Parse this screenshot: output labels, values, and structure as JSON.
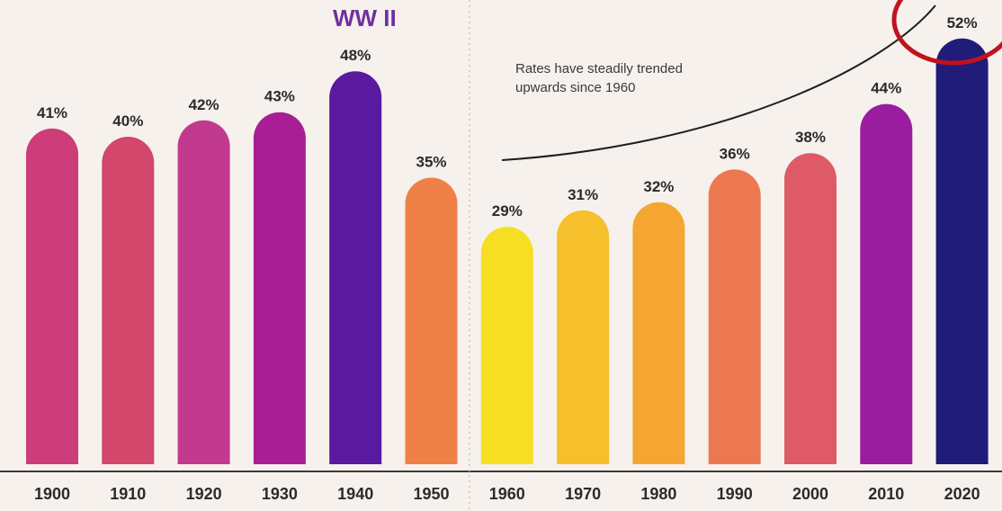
{
  "chart_data": {
    "type": "bar",
    "categories": [
      "1900",
      "1910",
      "1920",
      "1930",
      "1940",
      "1950",
      "1960",
      "1970",
      "1980",
      "1990",
      "2000",
      "2010",
      "2020"
    ],
    "values": [
      41,
      40,
      42,
      43,
      48,
      35,
      29,
      31,
      32,
      36,
      38,
      44,
      52
    ],
    "value_labels": [
      "41%",
      "40%",
      "42%",
      "43%",
      "48%",
      "35%",
      "29%",
      "31%",
      "32%",
      "36%",
      "38%",
      "44%",
      "52%"
    ],
    "bar_colors": [
      "#cc3d79",
      "#d2476b",
      "#c23a8f",
      "#a81f95",
      "#5a1aa0",
      "#ef8048",
      "#f6de22",
      "#f6bf2c",
      "#f5a630",
      "#ec7852",
      "#de5a67",
      "#9a1c9f",
      "#1f1c7a"
    ],
    "ylim": [
      0,
      55
    ],
    "grid": false,
    "legend": "none",
    "title": "",
    "xlabel": "",
    "ylabel": "",
    "annotations": {
      "ww_label": "WW II",
      "ww_color": "#7030a0",
      "trend_line1": "Rates have steadily trended",
      "trend_line2": "upwards since 1960",
      "highlight_color": "#c0121f"
    }
  }
}
